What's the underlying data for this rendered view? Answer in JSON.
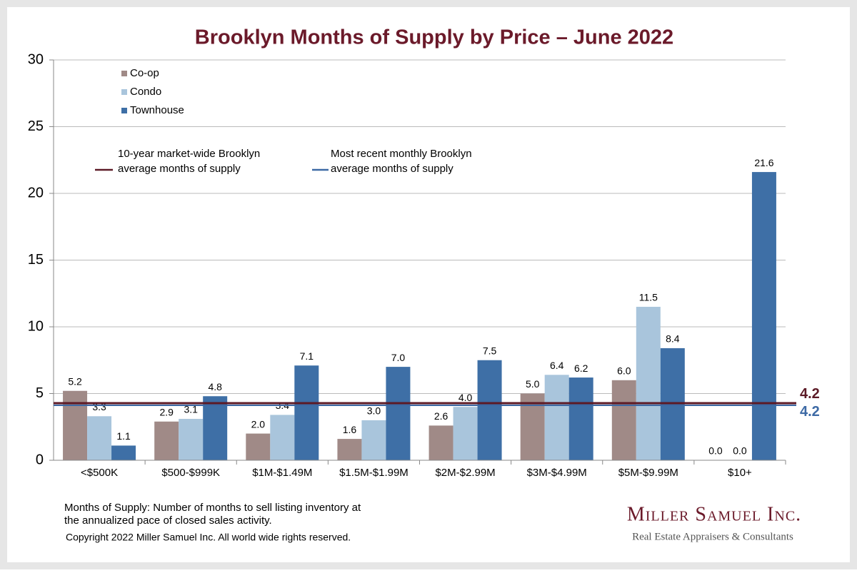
{
  "chart_data": {
    "type": "bar",
    "title": "Brooklyn Months of Supply by Price – June 2022",
    "categories": [
      "<$500K",
      "$500-$999K",
      "$1M-$1.49M",
      "$1.5M-$1.99M",
      "$2M-$2.99M",
      "$3M-$4.99M",
      "$5M-$9.99M",
      "$10+"
    ],
    "series": [
      {
        "name": "Co-op",
        "color": "#a08a87",
        "values": [
          5.2,
          2.9,
          2.0,
          1.6,
          2.6,
          5.0,
          6.0,
          0.0
        ],
        "value_labels": [
          "5.2",
          "2.9",
          "2.0",
          "1.6",
          "2.6",
          "5.0",
          "6.0",
          "0.0"
        ]
      },
      {
        "name": "Condo",
        "color": "#a9c5dc",
        "values": [
          3.3,
          3.1,
          3.4,
          3.0,
          4.0,
          6.4,
          11.5,
          0.0
        ],
        "value_labels": [
          "3.3",
          "3.1",
          "3.4",
          "3.0",
          "4.0",
          "6.4",
          "11.5",
          "0.0"
        ]
      },
      {
        "name": "Townhouse",
        "color": "#3e6fa6",
        "values": [
          1.1,
          4.8,
          7.1,
          7.0,
          7.5,
          6.2,
          8.4,
          21.6
        ],
        "value_labels": [
          "1.1",
          "4.8",
          "7.1",
          "7.0",
          "7.5",
          "6.2",
          "8.4",
          "21.6"
        ]
      }
    ],
    "reference_lines": [
      {
        "name_lines": [
          "10-year market-wide Brooklyn",
          "average months of supply"
        ],
        "value": 4.2,
        "color": "#5c1a26"
      },
      {
        "name_lines": [
          "Most recent monthly Brooklyn",
          "average months of supply"
        ],
        "value": 4.2,
        "color": "#3d6aa5"
      }
    ],
    "ylim": [
      0,
      30
    ],
    "yticks": [
      0,
      5,
      10,
      15,
      20,
      25,
      30
    ],
    "grid": true,
    "footnote": [
      "Months of Supply: Number of months to sell listing inventory at",
      "the annualized pace of closed sales activity."
    ],
    "copyright": "Copyright 2022 Miller Samuel Inc.  All world wide rights reserved.",
    "brand": "Miller Samuel Inc.",
    "brand_tagline": "Real Estate Appraisers & Consultants"
  }
}
